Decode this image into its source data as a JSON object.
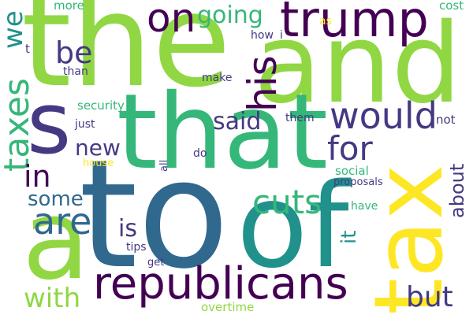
{
  "palette": {
    "yellow": "#fde725",
    "lime": "#90d743",
    "green": "#35b779",
    "teal": "#21918c",
    "blue": "#31688e",
    "indigo": "#443983",
    "purple": "#440154"
  },
  "words": [
    {
      "text": "the",
      "color": "lime"
    },
    {
      "text": "to",
      "color": "blue"
    },
    {
      "text": "and",
      "color": "lime"
    },
    {
      "text": "that",
      "color": "green"
    },
    {
      "text": "of",
      "color": "teal"
    },
    {
      "text": "tax",
      "color": "yellow"
    },
    {
      "text": "a",
      "color": "lime"
    },
    {
      "text": "s",
      "color": "indigo"
    },
    {
      "text": "trump",
      "color": "purple"
    },
    {
      "text": "republicans",
      "color": "purple"
    },
    {
      "text": "his",
      "color": "purple"
    },
    {
      "text": "on",
      "color": "purple"
    },
    {
      "text": "would",
      "color": "indigo"
    },
    {
      "text": "taxes",
      "color": "green"
    },
    {
      "text": "are",
      "color": "blue"
    },
    {
      "text": "cuts",
      "color": "green"
    },
    {
      "text": "for",
      "color": "indigo"
    },
    {
      "text": "but",
      "color": "indigo"
    },
    {
      "text": "with",
      "color": "lime"
    },
    {
      "text": "in",
      "color": "purple"
    },
    {
      "text": "we",
      "color": "teal"
    },
    {
      "text": "be",
      "color": "indigo"
    },
    {
      "text": "going",
      "color": "green"
    },
    {
      "text": "said",
      "color": "indigo"
    },
    {
      "text": "new",
      "color": "indigo"
    },
    {
      "text": "some",
      "color": "blue"
    },
    {
      "text": "is",
      "color": "indigo"
    },
    {
      "text": "about",
      "color": "indigo"
    },
    {
      "text": "it",
      "color": "teal"
    },
    {
      "text": "more",
      "color": "green"
    },
    {
      "text": "cost",
      "color": "green"
    },
    {
      "text": "how",
      "color": "indigo"
    },
    {
      "text": "i",
      "color": "indigo"
    },
    {
      "text": "as",
      "color": "yellow"
    },
    {
      "text": "t",
      "color": "indigo"
    },
    {
      "text": "than",
      "color": "indigo"
    },
    {
      "text": "make",
      "color": "indigo"
    },
    {
      "text": "security",
      "color": "green"
    },
    {
      "text": "them",
      "color": "indigo"
    },
    {
      "text": "not",
      "color": "indigo"
    },
    {
      "text": "just",
      "color": "indigo"
    },
    {
      "text": "do",
      "color": "indigo"
    },
    {
      "text": "house",
      "color": "yellow"
    },
    {
      "text": "all",
      "color": "indigo"
    },
    {
      "text": "social",
      "color": "green"
    },
    {
      "text": "proposals",
      "color": "indigo"
    },
    {
      "text": "have",
      "color": "green"
    },
    {
      "text": "tips",
      "color": "indigo"
    },
    {
      "text": "get",
      "color": "indigo"
    },
    {
      "text": "overtime",
      "color": "lime"
    }
  ]
}
